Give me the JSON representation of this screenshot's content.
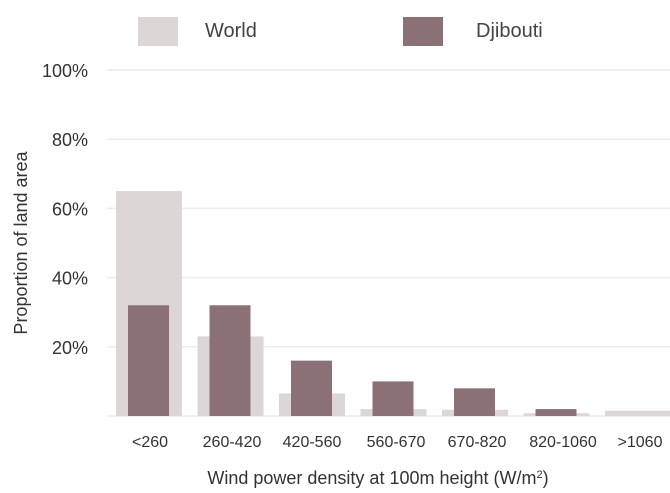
{
  "chart_data": {
    "type": "bar",
    "categories": [
      "<260",
      "260-420",
      "420-560",
      "560-670",
      "670-820",
      "820-1060",
      ">1060"
    ],
    "series": [
      {
        "name": "World",
        "values": [
          65,
          23,
          6.5,
          2,
          1.8,
          0.8,
          1.5
        ],
        "color": "#ddd6d6",
        "style": "background-wide"
      },
      {
        "name": "Djibouti",
        "values": [
          32,
          32,
          16,
          10,
          8,
          2,
          0
        ],
        "color": "#8b7175",
        "style": "foreground-narrow"
      }
    ],
    "y_ticks": [
      {
        "value": 20,
        "label": "20%"
      },
      {
        "value": 40,
        "label": "40%"
      },
      {
        "value": 60,
        "label": "60%"
      },
      {
        "value": 80,
        "label": "80%"
      },
      {
        "value": 100,
        "label": "100%"
      }
    ],
    "ylim": [
      0,
      100
    ],
    "xlabel": "Wind power density at 100m height (W/m",
    "xlabel_superscript": "2",
    "xlabel_suffix": ")",
    "ylabel": "Proportion of land area",
    "title": "",
    "grid": true,
    "legend_position": "top"
  }
}
